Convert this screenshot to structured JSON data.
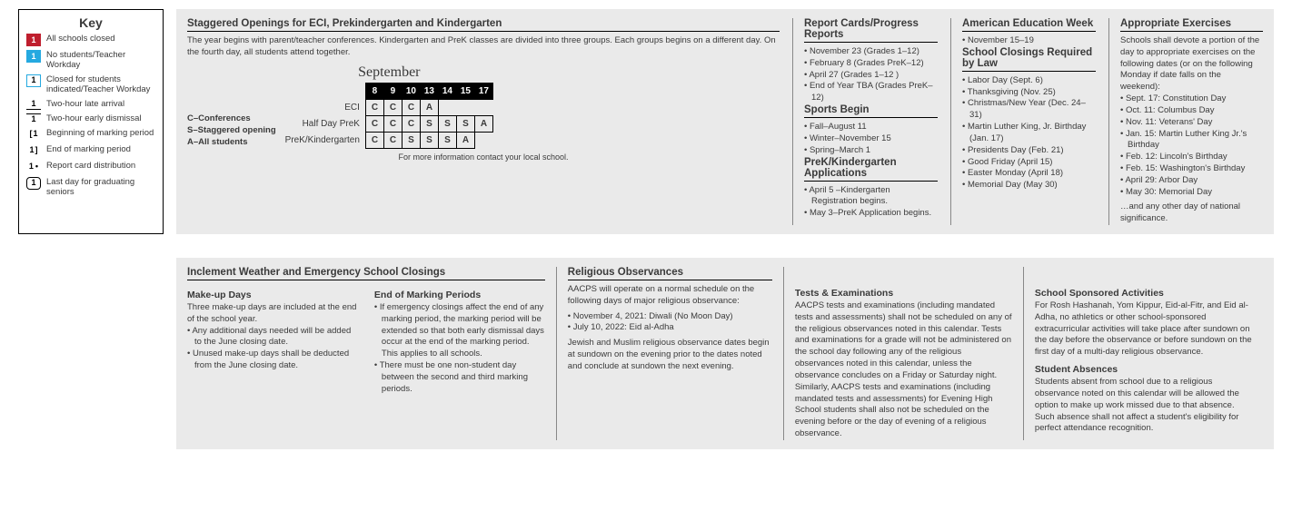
{
  "key": {
    "title": "Key",
    "items": [
      {
        "swatch_bg": "#bf1e2e",
        "swatch_txt": "1",
        "style": "fill",
        "label": "All schools closed"
      },
      {
        "swatch_bg": "#25a9e0",
        "swatch_txt": "1",
        "style": "fill",
        "label": "No students/Teacher Workday"
      },
      {
        "swatch_bg": "#ffffff",
        "swatch_txt": "1",
        "style": "border-blue",
        "label": "Closed for students indicated/Teacher Workday"
      },
      {
        "swatch_bg": "#ffffff",
        "swatch_txt": "1",
        "style": "underline",
        "label": "Two-hour late arrival"
      },
      {
        "swatch_bg": "#ffffff",
        "swatch_txt": "1",
        "style": "overline",
        "label": "Two-hour early dismissal"
      },
      {
        "swatch_bg": "#ffffff",
        "swatch_txt": "1",
        "style": "lbracket",
        "label": "Beginning of marking period"
      },
      {
        "swatch_bg": "#ffffff",
        "swatch_txt": "1",
        "style": "rbracket",
        "label": "End of marking period"
      },
      {
        "swatch_bg": "#ffffff",
        "swatch_txt": "1",
        "style": "dot",
        "label": "Report card distribution"
      },
      {
        "swatch_bg": "#ffffff",
        "swatch_txt": "1",
        "style": "round",
        "label": "Last day for graduating seniors"
      }
    ]
  },
  "staggered": {
    "heading": "Staggered Openings for ECI, Prekindergarten and Kindergarten",
    "intro": "The year begins with parent/teacher conferences. Kindergarten and PreK classes are divided into three groups. Each groups begins on a different day. On the fourth day, all students attend together.",
    "legend": [
      "C–Conferences",
      "S–Staggered opening",
      "A–All students"
    ],
    "cal_title": "September",
    "days": [
      "8",
      "9",
      "10",
      "13",
      "14",
      "15",
      "17"
    ],
    "rows": [
      {
        "label": "ECI",
        "cells": [
          "C",
          "C",
          "C",
          "A",
          "",
          "",
          ""
        ]
      },
      {
        "label": "Half Day PreK",
        "cells": [
          "C",
          "C",
          "C",
          "S",
          "S",
          "S",
          "A"
        ]
      },
      {
        "label": "PreK/Kindergarten",
        "cells": [
          "C",
          "C",
          "S",
          "S",
          "S",
          "A",
          ""
        ]
      }
    ],
    "note": "For more information contact your local school."
  },
  "top_sections": [
    {
      "heading": "Report Cards/Progress Reports",
      "bullets": [
        "November 23 (Grades 1–12)",
        "February 8 (Grades PreK–12)",
        "April 27 (Grades 1–12 )",
        "End of Year TBA (Grades PreK–12)"
      ],
      "sub": [
        {
          "heading": "Sports Begin",
          "bullets": [
            "Fall–August 11",
            "Winter–November 15",
            "Spring–March 1"
          ]
        },
        {
          "heading": "PreK/Kindergarten Applications",
          "bullets": [
            "April 5 –Kindergarten Registration begins.",
            "May 3–PreK Application begins."
          ]
        }
      ]
    },
    {
      "heading": "American Education Week",
      "bullets": [
        "November 15–19"
      ],
      "sub": [
        {
          "heading": "School Closings Required by Law",
          "bullets": [
            "Labor Day (Sept. 6)",
            "Thanksgiving (Nov. 25)",
            "Christmas/New Year (Dec. 24–31)",
            "Martin Luther King, Jr. Birthday (Jan. 17)",
            "Presidents Day (Feb. 21)",
            "Good Friday (April 15)",
            "Easter Monday (April 18)",
            "Memorial Day (May 30)"
          ]
        }
      ]
    },
    {
      "heading": "Appropriate Exercises",
      "intro": "Schools shall devote a portion of the day to appropriate exercises on the following dates (or on the following Monday if date falls on the weekend):",
      "bullets": [
        "Sept. 17: Constitution Day",
        "Oct. 11: Columbus Day",
        "Nov. 11: Veterans' Day",
        "Jan. 15: Martin Luther King Jr.'s Birthday",
        "Feb. 12: Lincoln's Birthday",
        "Feb. 15: Washington's Birthday",
        "April 29: Arbor Day",
        "May 30: Memorial Day"
      ],
      "outro": "…and any other day of national significance."
    }
  ],
  "bottom": {
    "col1": {
      "heading": "Inclement Weather and Emergency School Closings",
      "left": {
        "sub": "Make-up Days",
        "p": "Three make-up days are included at the end of the school year.",
        "bullets": [
          "Any additional days needed will be added to the June closing date.",
          "Unused make-up days shall be deducted from the June closing date."
        ]
      },
      "right": {
        "sub": "End of Marking Periods",
        "bullets": [
          "If emergency closings affect the end of any marking period, the marking period will be extended so that both early dismissal days occur at the end of the marking period. This applies to all schools.",
          "There must be one non-student day between the second and third marking periods."
        ]
      }
    },
    "col2": {
      "heading": "Religious Observances",
      "p1": "AACPS will operate on a normal schedule on the following days of major religious observance:",
      "bullets": [
        "November 4, 2021: Diwali (No Moon Day)",
        "July 10, 2022: Eid al-Adha"
      ],
      "p2": "Jewish and Muslim religious observance dates begin at sundown on the evening prior to the dates noted and conclude at sundown the next evening."
    },
    "col3": {
      "sub": "Tests & Examinations",
      "p": "AACPS tests and examinations (including mandated tests and assessments) shall not be scheduled on any of the religious observances noted in this calendar. Tests and examinations for a grade will not be administered on the school day following any of the religious observances noted in this calendar, unless the observance concludes on a Friday or Saturday night. Similarly, AACPS tests and examinations (including mandated tests and assessments) for Evening High School students shall also not be scheduled on the evening before or the day of evening of a religious observance."
    },
    "col4": {
      "sub1": "School Sponsored Activities",
      "p1": "For Rosh Hashanah, Yom Kippur, Eid-al-Fitr, and Eid al-Adha, no athletics or other school-sponsored extracurricular activities will take place after sundown on the day before the observance or before sundown on the first day of a multi-day religious observance.",
      "sub2": "Student Absences",
      "p2": "Students absent from school due to a religious observance noted on this calendar will be allowed the option to make up work missed due to that absence. Such absence shall not affect a student's eligibility for perfect attendance recognition."
    }
  }
}
